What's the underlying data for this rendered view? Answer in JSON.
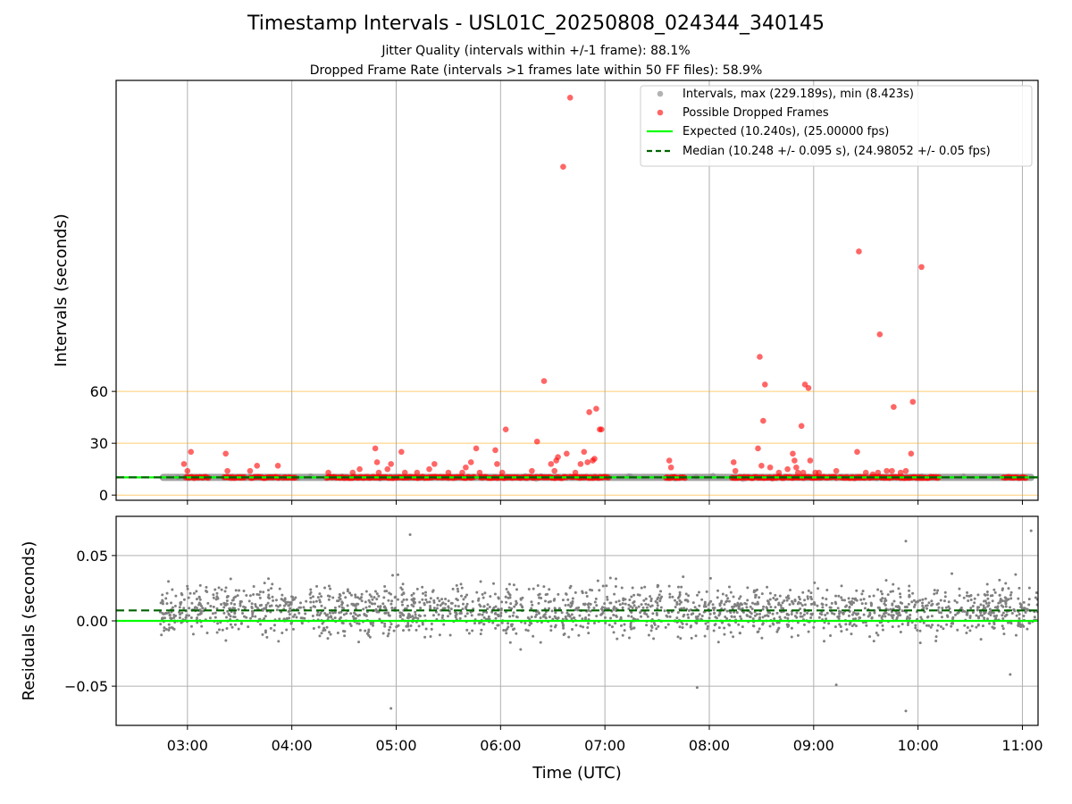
{
  "chart_data": [
    {
      "type": "scatter",
      "title": "Timestamp Intervals - USL01C_20250808_024344_340145",
      "subtitles": [
        "Jitter Quality (intervals within +/-1 frame): 88.1%",
        "Dropped Frame Rate (intervals >1 frames late within 50 FF files): 58.9%"
      ],
      "xlabel": "",
      "ylabel": "Intervals (seconds)",
      "xlim": [
        "02:19",
        "11:09"
      ],
      "ylim": [
        -3,
        240
      ],
      "yticks": [
        0,
        30,
        60
      ],
      "xticks": [
        "03:00",
        "04:00",
        "05:00",
        "06:00",
        "07:00",
        "08:00",
        "09:00",
        "10:00",
        "11:00"
      ],
      "reference_lines": [
        0,
        30,
        60
      ],
      "grid": "vertical",
      "legend": "top-right",
      "series": [
        {
          "name": "Intervals, max (229.189s), min (8.423s)",
          "color": "#808080",
          "kind": "dense-band",
          "x_range": [
            "02:44",
            "11:07"
          ],
          "y_approx": 10.24
        },
        {
          "name": "Possible Dropped Frames",
          "color": "#ff0000",
          "kind": "points",
          "cluster_value": 10.2,
          "clusters": [
            [
              "02:59",
              "03:12"
            ],
            [
              "03:21",
              "03:33"
            ],
            [
              "03:36",
              "03:53"
            ],
            [
              "03:55",
              "04:02"
            ],
            [
              "04:20",
              "04:35"
            ],
            [
              "04:35",
              "05:45"
            ],
            [
              "05:48",
              "06:38"
            ],
            [
              "06:40",
              "07:02"
            ],
            [
              "07:35",
              "07:40"
            ],
            [
              "07:40",
              "07:46"
            ],
            [
              "08:13",
              "08:25"
            ],
            [
              "08:25",
              "09:13"
            ],
            [
              "09:15",
              "09:30"
            ],
            [
              "09:32",
              "10:12"
            ],
            [
              "10:49",
              "11:02"
            ]
          ],
          "points": [
            {
              "x": "02:58",
              "y": 18
            },
            {
              "x": "03:00",
              "y": 14
            },
            {
              "x": "03:02",
              "y": 25
            },
            {
              "x": "03:22",
              "y": 24
            },
            {
              "x": "03:23",
              "y": 14
            },
            {
              "x": "03:36",
              "y": 14
            },
            {
              "x": "03:40",
              "y": 17
            },
            {
              "x": "03:52",
              "y": 17
            },
            {
              "x": "04:21",
              "y": 13
            },
            {
              "x": "04:35",
              "y": 13
            },
            {
              "x": "04:39",
              "y": 15
            },
            {
              "x": "04:48",
              "y": 27
            },
            {
              "x": "04:49",
              "y": 19
            },
            {
              "x": "04:50",
              "y": 13
            },
            {
              "x": "04:55",
              "y": 15
            },
            {
              "x": "04:57",
              "y": 18
            },
            {
              "x": "05:03",
              "y": 25
            },
            {
              "x": "05:05",
              "y": 13
            },
            {
              "x": "05:12",
              "y": 13
            },
            {
              "x": "05:19",
              "y": 15
            },
            {
              "x": "05:22",
              "y": 18
            },
            {
              "x": "05:30",
              "y": 13
            },
            {
              "x": "05:38",
              "y": 13
            },
            {
              "x": "05:40",
              "y": 16
            },
            {
              "x": "05:43",
              "y": 19
            },
            {
              "x": "05:46",
              "y": 27
            },
            {
              "x": "05:48",
              "y": 13
            },
            {
              "x": "05:57",
              "y": 26
            },
            {
              "x": "05:58",
              "y": 18
            },
            {
              "x": "06:01",
              "y": 13
            },
            {
              "x": "06:03",
              "y": 38
            },
            {
              "x": "06:18",
              "y": 14
            },
            {
              "x": "06:21",
              "y": 31
            },
            {
              "x": "06:25",
              "y": 66
            },
            {
              "x": "06:29",
              "y": 18
            },
            {
              "x": "06:31",
              "y": 14
            },
            {
              "x": "06:32",
              "y": 20
            },
            {
              "x": "06:33",
              "y": 22
            },
            {
              "x": "06:36",
              "y": 190
            },
            {
              "x": "06:38",
              "y": 24
            },
            {
              "x": "06:40",
              "y": 230
            },
            {
              "x": "06:43",
              "y": 13
            },
            {
              "x": "06:46",
              "y": 18
            },
            {
              "x": "06:48",
              "y": 25
            },
            {
              "x": "06:50",
              "y": 19
            },
            {
              "x": "06:51",
              "y": 48
            },
            {
              "x": "06:53",
              "y": 20
            },
            {
              "x": "06:54",
              "y": 21
            },
            {
              "x": "06:55",
              "y": 50
            },
            {
              "x": "06:57",
              "y": 38
            },
            {
              "x": "06:58",
              "y": 38
            },
            {
              "x": "07:37",
              "y": 20
            },
            {
              "x": "07:38",
              "y": 16
            },
            {
              "x": "08:14",
              "y": 19
            },
            {
              "x": "08:15",
              "y": 14
            },
            {
              "x": "08:28",
              "y": 27
            },
            {
              "x": "08:29",
              "y": 80
            },
            {
              "x": "08:30",
              "y": 17
            },
            {
              "x": "08:31",
              "y": 43
            },
            {
              "x": "08:32",
              "y": 64
            },
            {
              "x": "08:35",
              "y": 16
            },
            {
              "x": "08:40",
              "y": 13
            },
            {
              "x": "08:45",
              "y": 15
            },
            {
              "x": "08:48",
              "y": 24
            },
            {
              "x": "08:49",
              "y": 20
            },
            {
              "x": "08:50",
              "y": 16
            },
            {
              "x": "08:51",
              "y": 13
            },
            {
              "x": "08:53",
              "y": 40
            },
            {
              "x": "08:54",
              "y": 13
            },
            {
              "x": "08:55",
              "y": 64
            },
            {
              "x": "08:57",
              "y": 62
            },
            {
              "x": "08:58",
              "y": 20
            },
            {
              "x": "09:01",
              "y": 13
            },
            {
              "x": "09:03",
              "y": 13
            },
            {
              "x": "09:13",
              "y": 14
            },
            {
              "x": "09:25",
              "y": 25
            },
            {
              "x": "09:26",
              "y": 141
            },
            {
              "x": "09:30",
              "y": 13
            },
            {
              "x": "09:34",
              "y": 12
            },
            {
              "x": "09:37",
              "y": 13
            },
            {
              "x": "09:38",
              "y": 93
            },
            {
              "x": "09:42",
              "y": 14
            },
            {
              "x": "09:45",
              "y": 14
            },
            {
              "x": "09:46",
              "y": 51
            },
            {
              "x": "09:50",
              "y": 13
            },
            {
              "x": "09:53",
              "y": 14
            },
            {
              "x": "09:56",
              "y": 24
            },
            {
              "x": "09:57",
              "y": 54
            },
            {
              "x": "10:02",
              "y": 132
            }
          ]
        },
        {
          "name": "Expected (10.240s), (25.00000 fps)",
          "color": "#00ff00",
          "kind": "hline",
          "y": 10.24
        },
        {
          "name": "Median (10.248 +/- 0.095 s), (24.98052 +/- 0.05 fps)",
          "color": "#006400",
          "kind": "hline-dashed",
          "y": 10.248
        }
      ]
    },
    {
      "type": "scatter",
      "xlabel": "Time (UTC)",
      "ylabel": "Residuals (seconds)",
      "xlim": [
        "02:19",
        "11:09"
      ],
      "ylim": [
        -0.08,
        0.08
      ],
      "yticks": [
        -0.05,
        0.0,
        0.05
      ],
      "ytick_labels": [
        "−0.05",
        "0.00",
        "0.05"
      ],
      "xticks": [
        "03:00",
        "04:00",
        "05:00",
        "06:00",
        "07:00",
        "08:00",
        "09:00",
        "10:00",
        "11:00"
      ],
      "grid": "both",
      "series": [
        {
          "color": "#808080",
          "kind": "dense-noise",
          "x_range": [
            "02:44",
            "11:09"
          ],
          "center": 0.008,
          "spread": 0.025,
          "count": 2000,
          "outliers": [
            {
              "x": "04:57",
              "y": -0.067
            },
            {
              "x": "05:08",
              "y": 0.066
            },
            {
              "x": "07:53",
              "y": -0.051
            },
            {
              "x": "09:13",
              "y": -0.049
            },
            {
              "x": "09:53",
              "y": -0.069
            },
            {
              "x": "09:53",
              "y": 0.061
            },
            {
              "x": "11:05",
              "y": 0.069
            },
            {
              "x": "10:53",
              "y": -0.041
            }
          ]
        },
        {
          "color": "#00ff00",
          "kind": "hline",
          "y": 0.0
        },
        {
          "color": "#006400",
          "kind": "hline-dashed",
          "y": 0.008
        }
      ]
    }
  ]
}
